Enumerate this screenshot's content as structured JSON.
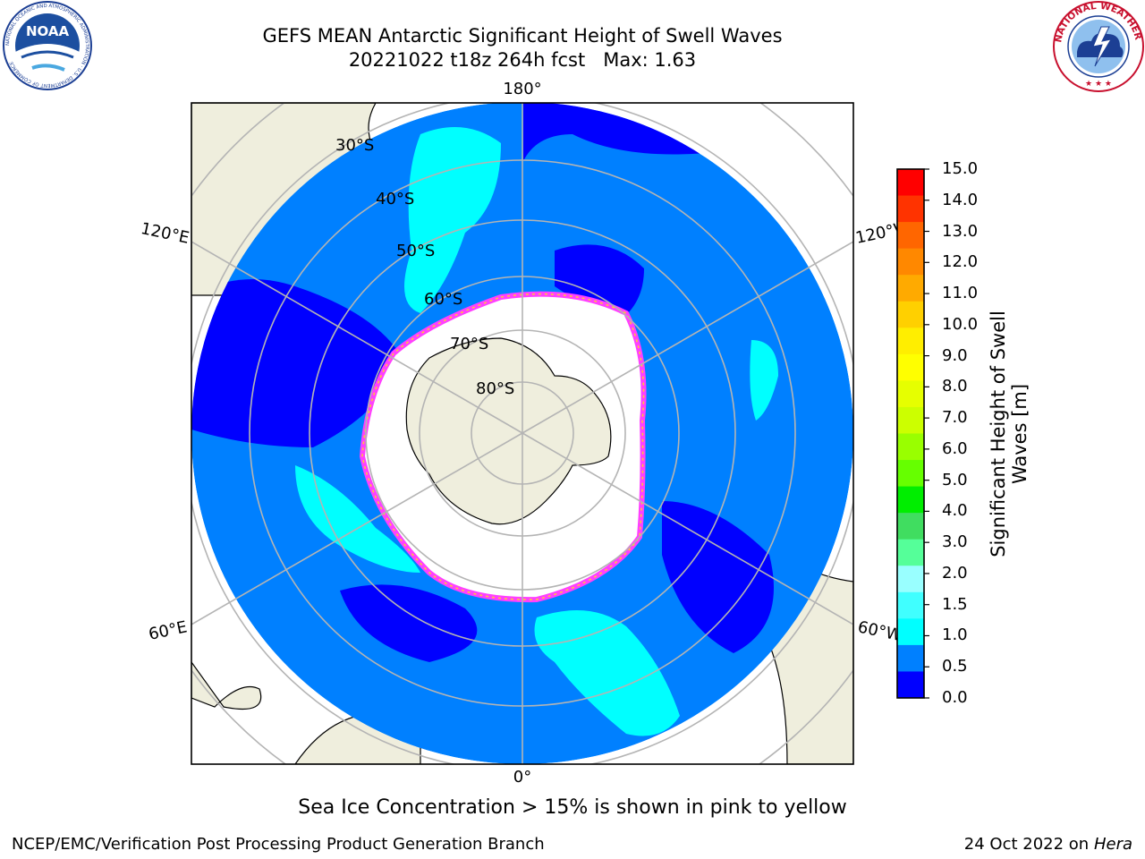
{
  "header": {
    "title_line1": "GEFS MEAN Antarctic Significant Height of Swell Waves",
    "title_line2": "20221022 t18z 264h fcst   Max: 1.63"
  },
  "logos": {
    "noaa_text": "NOAA",
    "noaa_ring_text": "NATIONAL OCEANIC AND ATMOSPHERIC ADMINISTRATION · U.S. DEPARTMENT OF COMMERCE",
    "nws_ring_text": "NATIONAL WEATHER SERVICE"
  },
  "map": {
    "projection": "south-polar-stereographic",
    "longitude_labels": [
      "180°",
      "120°E",
      "120°W",
      "60°E",
      "60°W",
      "0°"
    ],
    "latitude_labels": [
      "30°S",
      "40°S",
      "50°S",
      "60°S",
      "70°S",
      "80°S"
    ],
    "colors": {
      "land": "#efeedd",
      "ocean_0_0p5": "#0000ff",
      "ocean_0p5_1": "#0080ff",
      "ocean_1_1p5": "#00ffff",
      "ocean_1p5_2": "#40ffff",
      "ice_edge_pink": "#ff40ff",
      "ice_edge_yellow": "#ffcc33",
      "grid": "#b4b4b4"
    }
  },
  "colorbar": {
    "title_line1": "Significant Height of Swell",
    "title_line2": "Waves [m]",
    "ticks": [
      "15.0",
      "14.0",
      "13.0",
      "12.0",
      "11.0",
      "10.0",
      "9.0",
      "8.0",
      "7.0",
      "6.0",
      "5.0",
      "4.0",
      "3.0",
      "2.0",
      "1.5",
      "1.0",
      "0.5",
      "0.0"
    ],
    "bins": [
      {
        "color": "#ff0000"
      },
      {
        "color": "#ff3300"
      },
      {
        "color": "#ff6600"
      },
      {
        "color": "#ff8800"
      },
      {
        "color": "#ffaa00"
      },
      {
        "color": "#ffd000"
      },
      {
        "color": "#ffee00"
      },
      {
        "color": "#ffff00"
      },
      {
        "color": "#e6ff00"
      },
      {
        "color": "#ccff00"
      },
      {
        "color": "#99ff00"
      },
      {
        "color": "#66ff00"
      },
      {
        "color": "#00ee00"
      },
      {
        "color": "#40dd60"
      },
      {
        "color": "#55ff99"
      },
      {
        "color": "#99ffff"
      },
      {
        "color": "#40ffff"
      },
      {
        "color": "#00ffff"
      },
      {
        "color": "#0080ff"
      },
      {
        "color": "#0000ff"
      }
    ]
  },
  "footer": {
    "note": "Sea Ice Concentration > 15% is shown in pink to yellow",
    "left": "NCEP/EMC/Verification Post Processing Product Generation Branch",
    "right_prefix": "24 Oct 2022 on ",
    "right_host": "Hera"
  }
}
